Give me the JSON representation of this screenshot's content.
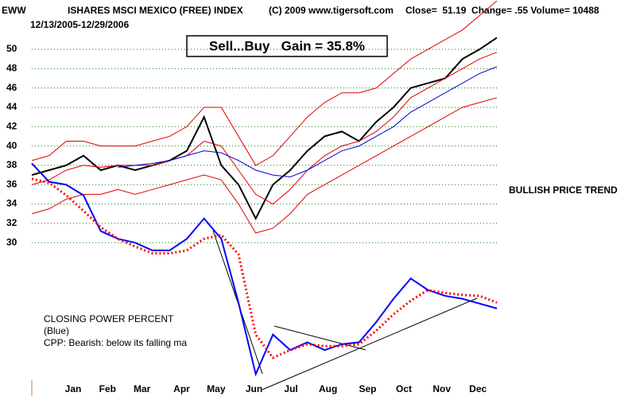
{
  "chart_data": {
    "type": "line",
    "symbol": "EWW",
    "title": "ISHARES MSCI MEXICO (FREE) INDEX",
    "copyright": "(C) 2009 www.tigersoft.com",
    "quote": "Close=  51.19  Change= .55 Volume= 10488",
    "date_range": "12/13/2005-12/29/2006",
    "gain_box": "Sell...Buy   Gain = 35.8%",
    "annotation": "BULLISH PRICE TREND",
    "indicator_title": "CLOSING POWER PERCENT",
    "indicator_color_note": "(Blue)",
    "indicator_note": "CPP: Bearish: below its falling ma",
    "xlim": [
      0,
      27
    ],
    "xticks": [
      {
        "value": 2.4,
        "label": "Jan"
      },
      {
        "value": 4.4,
        "label": "Feb"
      },
      {
        "value": 6.4,
        "label": "Mar"
      },
      {
        "value": 8.7,
        "label": "Apr"
      },
      {
        "value": 10.7,
        "label": "May"
      },
      {
        "value": 12.9,
        "label": "Jun"
      },
      {
        "value": 15.05,
        "label": "Jul"
      },
      {
        "value": 17.2,
        "label": "Aug"
      },
      {
        "value": 19.5,
        "label": "Sep"
      },
      {
        "value": 21.6,
        "label": "Oct"
      },
      {
        "value": 23.8,
        "label": "Nov"
      },
      {
        "value": 25.9,
        "label": "Dec"
      }
    ],
    "ylim": [
      14.8,
      55.1
    ],
    "yticks": [
      30,
      32,
      34,
      36,
      38,
      40,
      42,
      44,
      46,
      48,
      50
    ],
    "grid": true,
    "series": [
      {
        "color": "#000000",
        "values": [
          37,
          37.5,
          38,
          39,
          37.5,
          38,
          37.5,
          38,
          38.5,
          39.5,
          43,
          38,
          36,
          32.5,
          36,
          37.5,
          39.5,
          41,
          41.5,
          40.5,
          42.5,
          44,
          46,
          46.5,
          47,
          49,
          50,
          51.2
        ]
      },
      {
        "color": "#e00000",
        "values": [
          38.5,
          39,
          40.5,
          40.5,
          40,
          40,
          40,
          40.5,
          41,
          42,
          44,
          44,
          41,
          38,
          39,
          41,
          43,
          44.5,
          45.5,
          45.5,
          46,
          47.5,
          49,
          50,
          51,
          52,
          53.5,
          55
        ]
      },
      {
        "color": "#e00000",
        "values": [
          33,
          33.5,
          34.5,
          35,
          35,
          35.5,
          35,
          35.5,
          36,
          36.5,
          37,
          36.5,
          34,
          31,
          31.5,
          33,
          35,
          36,
          37,
          38,
          39,
          40,
          41,
          42,
          43,
          44,
          44.5,
          45
        ]
      },
      {
        "color": "#e00000",
        "values": [
          36,
          36.5,
          37.5,
          38,
          37.8,
          38,
          38,
          38,
          38.5,
          39,
          40.5,
          40,
          37.5,
          35,
          34,
          35.5,
          37.5,
          39,
          40,
          40.5,
          41.5,
          43,
          45,
          46,
          47,
          48,
          49,
          49.7
        ]
      },
      {
        "color": "#0000e0",
        "values": [
          null,
          null,
          null,
          null,
          null,
          37.8,
          38,
          38.2,
          38.5,
          39,
          39.5,
          39.3,
          38.5,
          37.5,
          37,
          36.8,
          37.5,
          38.5,
          39.5,
          40,
          41,
          42,
          43.5,
          44.5,
          45.5,
          46.5,
          47.5,
          48.2
        ]
      },
      {
        "color": "#0000ff",
        "values": [
          38.2,
          36.3,
          36.0,
          34.9,
          31.2,
          30.4,
          30.0,
          29.2,
          29.2,
          30.4,
          32.5,
          30.4,
          23.8,
          16.4,
          20.5,
          18.9,
          19.7,
          18.9,
          19.5,
          19.7,
          21.8,
          24.2,
          26.3,
          25.1,
          24.5,
          24.2,
          23.7,
          23.2
        ]
      },
      {
        "color": "#ff0000",
        "dotted": true,
        "values": [
          36.6,
          36.2,
          34.9,
          33.3,
          31.6,
          30.4,
          29.6,
          28.9,
          28.9,
          29.2,
          30.4,
          30.8,
          28.8,
          20.5,
          18.1,
          18.9,
          19.5,
          19.3,
          19.3,
          19.5,
          20.9,
          22.6,
          24.0,
          25.1,
          24.8,
          24.6,
          24.5,
          23.8
        ]
      }
    ]
  }
}
